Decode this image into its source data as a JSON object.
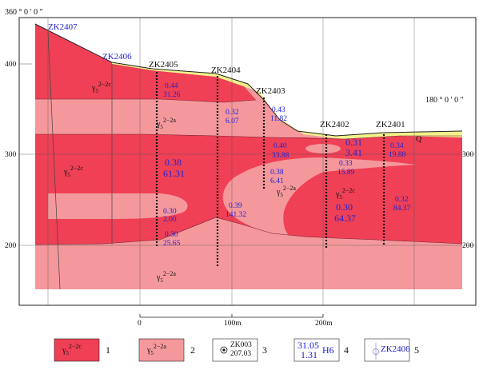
{
  "orientation": {
    "left": "360 ° 0 ′ 0 ″",
    "right": "180 ° 0 ′ 0 ″"
  },
  "elevation_ticks": [
    "400",
    "300",
    "200"
  ],
  "right_elevation_ticks": [
    "300",
    "200"
  ],
  "drill_holes": [
    {
      "id": "ZK2407",
      "style": "blue"
    },
    {
      "id": "ZK2406",
      "style": "blue"
    },
    {
      "id": "ZK2405",
      "style": "black"
    },
    {
      "id": "ZK2404",
      "style": "black"
    },
    {
      "id": "ZK2403",
      "style": "black"
    },
    {
      "id": "ZK2402",
      "style": "black"
    },
    {
      "id": "ZK2401",
      "style": "black"
    }
  ],
  "grades": [
    {
      "top": "0.44",
      "bottom": "31.26"
    },
    {
      "top": "0.32",
      "bottom": "6.07"
    },
    {
      "top": "0.43",
      "bottom": "11.82"
    },
    {
      "top": "0.38",
      "bottom": "61.31"
    },
    {
      "top": "0.40",
      "bottom": "33.88"
    },
    {
      "top": "0.31",
      "bottom": "3.41"
    },
    {
      "top": "0.34",
      "bottom": "19.88"
    },
    {
      "top": "0.33",
      "bottom": "15.89"
    },
    {
      "top": "0.38",
      "bottom": "6.41"
    },
    {
      "top": "0.39",
      "bottom": "141.32"
    },
    {
      "top": "0.30",
      "bottom": "2.00"
    },
    {
      "top": "0.30",
      "bottom": "64.37"
    },
    {
      "top": "0.32",
      "bottom": "84.37"
    },
    {
      "top": "0.30",
      "bottom": "25.65"
    }
  ],
  "units": {
    "gamma": "γ",
    "sub": "5",
    "c": "2−2c",
    "a": "2−2a",
    "q": "Q"
  },
  "scale": {
    "labels": [
      "0",
      "100m",
      "200m"
    ]
  },
  "legend": {
    "items": [
      {
        "num": "1",
        "label": "2−2c",
        "color": "#ef4055"
      },
      {
        "num": "2",
        "label": "2−2a",
        "color": "#f4989c"
      },
      {
        "num": "3",
        "hole": "ZK003",
        "value": "207.03"
      },
      {
        "num": "4",
        "grade": "31.05",
        "thick": "1.31",
        "code": "H6"
      },
      {
        "num": "5",
        "hole": "ZK2406"
      }
    ]
  },
  "colors": {
    "dark_red": "#ef4055",
    "pink": "#f4989c",
    "yellow": "#f2f28a",
    "blue_text": "#1f22d8"
  }
}
